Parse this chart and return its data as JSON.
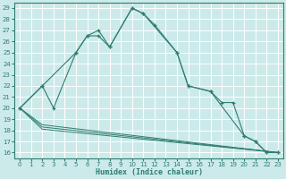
{
  "xlabel": "Humidex (Indice chaleur)",
  "background_color": "#cceaea",
  "grid_color": "#ffffff",
  "line_color": "#2e7d6e",
  "xlim": [
    -0.5,
    23.5
  ],
  "ylim": [
    15.5,
    29.5
  ],
  "xticks": [
    0,
    1,
    2,
    3,
    4,
    5,
    6,
    7,
    8,
    9,
    10,
    11,
    12,
    13,
    14,
    15,
    16,
    17,
    18,
    19,
    20,
    21,
    22,
    23
  ],
  "yticks": [
    16,
    17,
    18,
    19,
    20,
    21,
    22,
    23,
    24,
    25,
    26,
    27,
    28,
    29
  ],
  "curve1_x": [
    0,
    2,
    3,
    5,
    6,
    7,
    8,
    10,
    11,
    12,
    14,
    15,
    17,
    18,
    19,
    20,
    21,
    22,
    23
  ],
  "curve1_y": [
    20.0,
    22.0,
    20.0,
    25.0,
    26.5,
    27.0,
    25.5,
    29.0,
    28.5,
    27.5,
    25.0,
    22.0,
    21.5,
    20.5,
    20.5,
    17.5,
    17.0,
    16.0,
    16.0
  ],
  "curve2_x": [
    0,
    2,
    5,
    6,
    7,
    8,
    10,
    11,
    14,
    15,
    17,
    20,
    21,
    22,
    23
  ],
  "curve2_y": [
    20.0,
    22.0,
    25.0,
    26.5,
    26.5,
    25.5,
    29.0,
    28.5,
    25.0,
    22.0,
    21.5,
    17.5,
    17.0,
    16.0,
    16.0
  ],
  "line3_x": [
    0,
    2,
    23
  ],
  "line3_y": [
    20.0,
    18.5,
    16.0
  ],
  "line4_x": [
    0,
    2,
    23
  ],
  "line4_y": [
    20.0,
    18.3,
    16.0
  ],
  "line5_x": [
    0,
    2,
    23
  ],
  "line5_y": [
    20.0,
    18.1,
    16.0
  ]
}
